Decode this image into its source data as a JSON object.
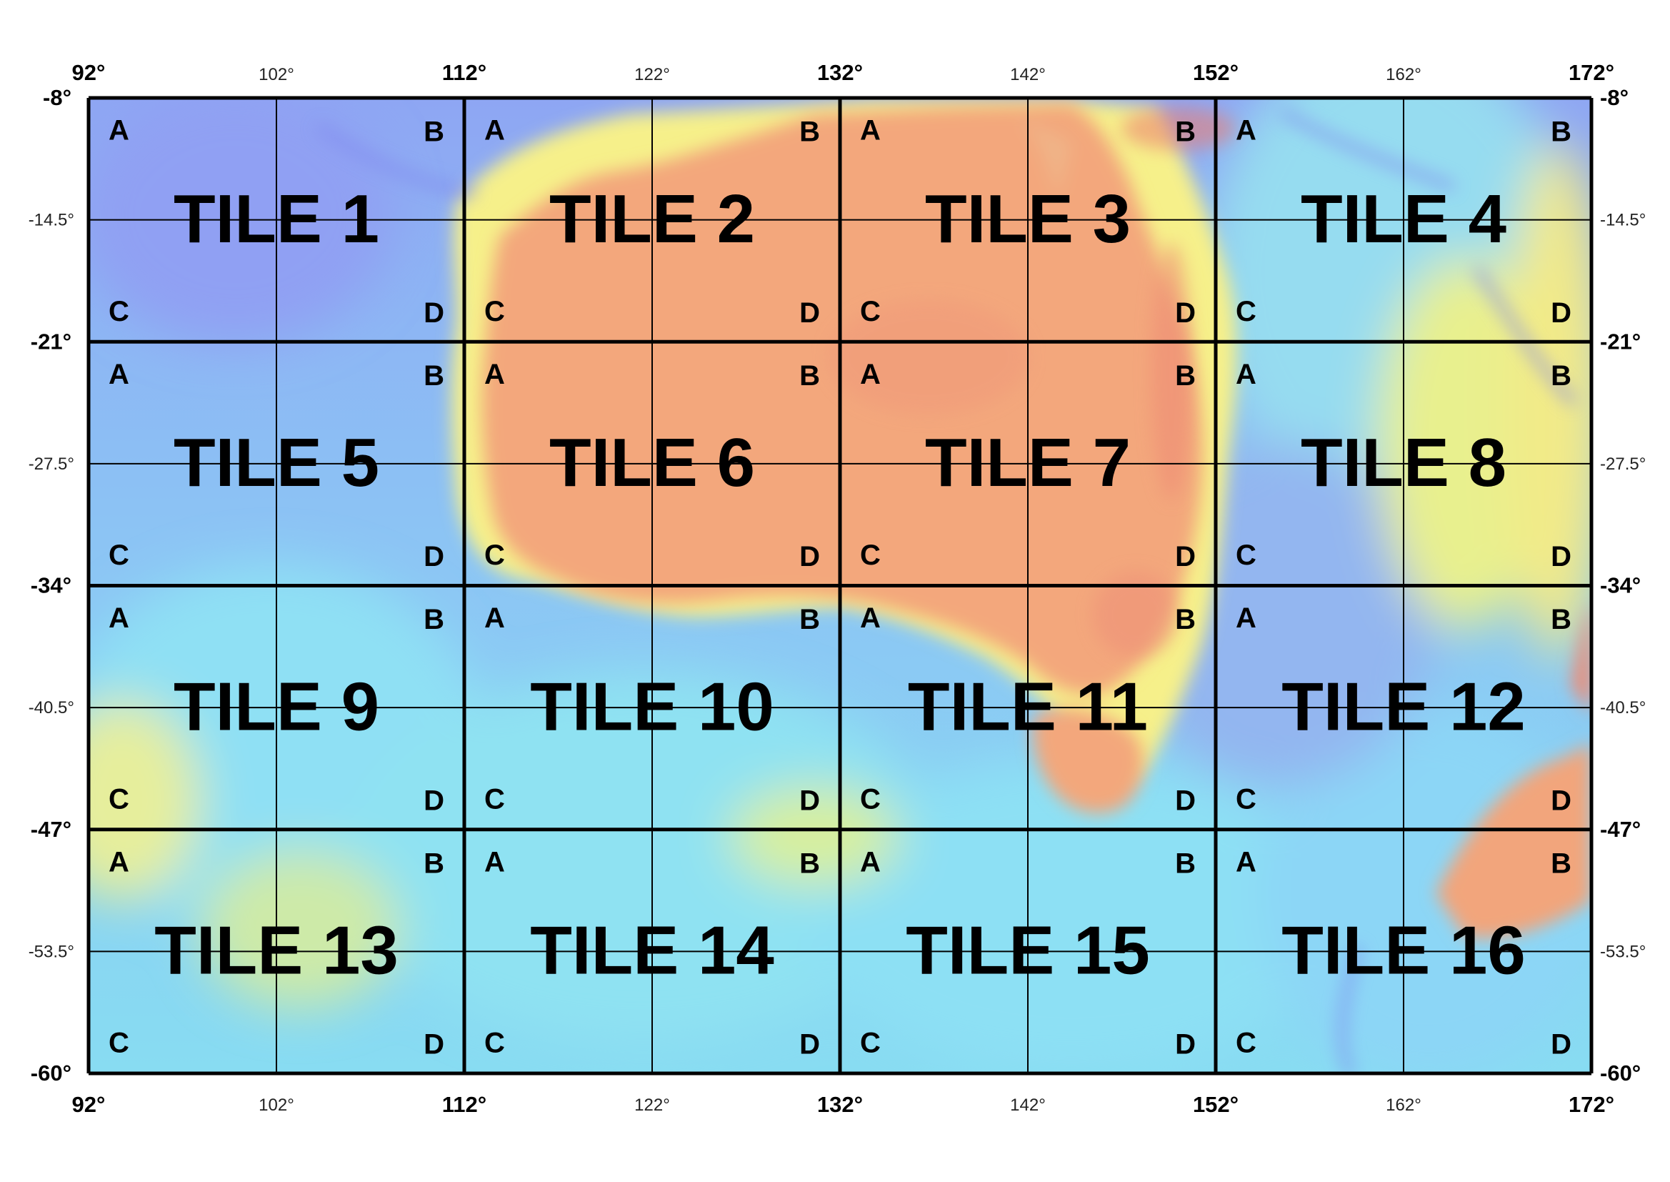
{
  "map": {
    "lon_range": [
      92,
      172
    ],
    "lat_range": [
      -8,
      -60
    ],
    "major_lon_step": 20,
    "major_lat_step": 13,
    "minor_lon_step": 10,
    "minor_lat_step": 6.5,
    "top_lon_labels_major": [
      "92°",
      "112°",
      "132°",
      "152°",
      "172°"
    ],
    "top_lon_labels_minor": [
      "102°",
      "122°",
      "142°",
      "162°"
    ],
    "bottom_lon_labels_major": [
      "92°",
      "112°",
      "132°",
      "152°",
      "172°"
    ],
    "bottom_lon_labels_minor": [
      "102°",
      "122°",
      "142°",
      "162°"
    ],
    "left_lat_labels_major": [
      "-8°",
      "-21°",
      "-34°",
      "-47°",
      "-60°"
    ],
    "left_lat_labels_minor": [
      "-14.5°",
      "-27.5°",
      "-40.5°",
      "-53.5°"
    ],
    "right_lat_labels_major": [
      "-8°",
      "-21°",
      "-34°",
      "-47°",
      "-60°"
    ],
    "right_lat_labels_minor": [
      "-14.5°",
      "-27.5°",
      "-40.5°",
      "-53.5°"
    ],
    "colors": {
      "deep_ocean": "#8aa3f5",
      "ocean": "#86d9f3",
      "shelf": "#f6f28a",
      "land": "#f4ad7a",
      "grid_line": "#000000"
    },
    "tiles": [
      {
        "label": "TILE 1",
        "subs": [
          "A",
          "B",
          "C",
          "D"
        ]
      },
      {
        "label": "TILE 2",
        "subs": [
          "A",
          "B",
          "C",
          "D"
        ]
      },
      {
        "label": "TILE 3",
        "subs": [
          "A",
          "B",
          "C",
          "D"
        ]
      },
      {
        "label": "TILE 4",
        "subs": [
          "A",
          "B",
          "C",
          "D"
        ]
      },
      {
        "label": "TILE 5",
        "subs": [
          "A",
          "B",
          "C",
          "D"
        ]
      },
      {
        "label": "TILE 6",
        "subs": [
          "A",
          "B",
          "C",
          "D"
        ]
      },
      {
        "label": "TILE 7",
        "subs": [
          "A",
          "B",
          "C",
          "D"
        ]
      },
      {
        "label": "TILE 8",
        "subs": [
          "A",
          "B",
          "C",
          "D"
        ]
      },
      {
        "label": "TILE 9",
        "subs": [
          "A",
          "B",
          "C",
          "D"
        ]
      },
      {
        "label": "TILE 10",
        "subs": [
          "A",
          "B",
          "C",
          "D"
        ]
      },
      {
        "label": "TILE 11",
        "subs": [
          "A",
          "B",
          "C",
          "D"
        ]
      },
      {
        "label": "TILE 12",
        "subs": [
          "A",
          "B",
          "C",
          "D"
        ]
      },
      {
        "label": "TILE 13",
        "subs": [
          "A",
          "B",
          "C",
          "D"
        ]
      },
      {
        "label": "TILE 14",
        "subs": [
          "A",
          "B",
          "C",
          "D"
        ]
      },
      {
        "label": "TILE 15",
        "subs": [
          "A",
          "B",
          "C",
          "D"
        ]
      },
      {
        "label": "TILE 16",
        "subs": [
          "A",
          "B",
          "C",
          "D"
        ]
      }
    ]
  }
}
